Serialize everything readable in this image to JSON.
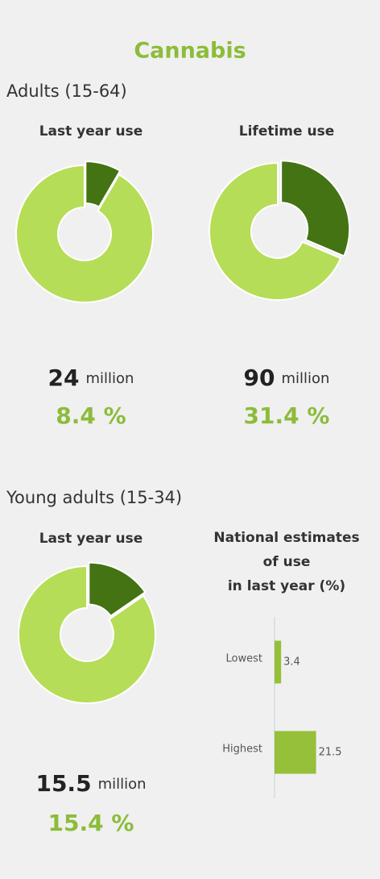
{
  "title": "Cannabis",
  "adults": {
    "heading": "Adults (15-64)"
  },
  "young": {
    "heading": "Young adults (15-34)"
  },
  "chart_data": [
    {
      "type": "pie",
      "title": "Last year use",
      "values": [
        8.4,
        91.6
      ],
      "value_labels": [
        "8.4 %",
        null
      ],
      "colors": [
        "#437313",
        "#b5dd57"
      ],
      "count": "24",
      "count_unit": "million"
    },
    {
      "type": "pie",
      "title": "Lifetime use",
      "values": [
        31.4,
        68.6
      ],
      "value_labels": [
        "31.4 %",
        null
      ],
      "colors": [
        "#437313",
        "#b5dd57"
      ],
      "count": "90",
      "count_unit": "million"
    },
    {
      "type": "pie",
      "title": "Last year use",
      "values": [
        15.4,
        84.6
      ],
      "value_labels": [
        "15.4 %",
        null
      ],
      "colors": [
        "#437313",
        "#b5dd57"
      ],
      "count": "15.5",
      "count_unit": "million"
    },
    {
      "type": "bar",
      "title": [
        "National estimates",
        "of use",
        "in last year (%)"
      ],
      "categories": [
        "Lowest",
        "Highest"
      ],
      "values": [
        3.4,
        21.5
      ],
      "color": "#96bf3a",
      "xlim": [
        0,
        50
      ]
    }
  ]
}
